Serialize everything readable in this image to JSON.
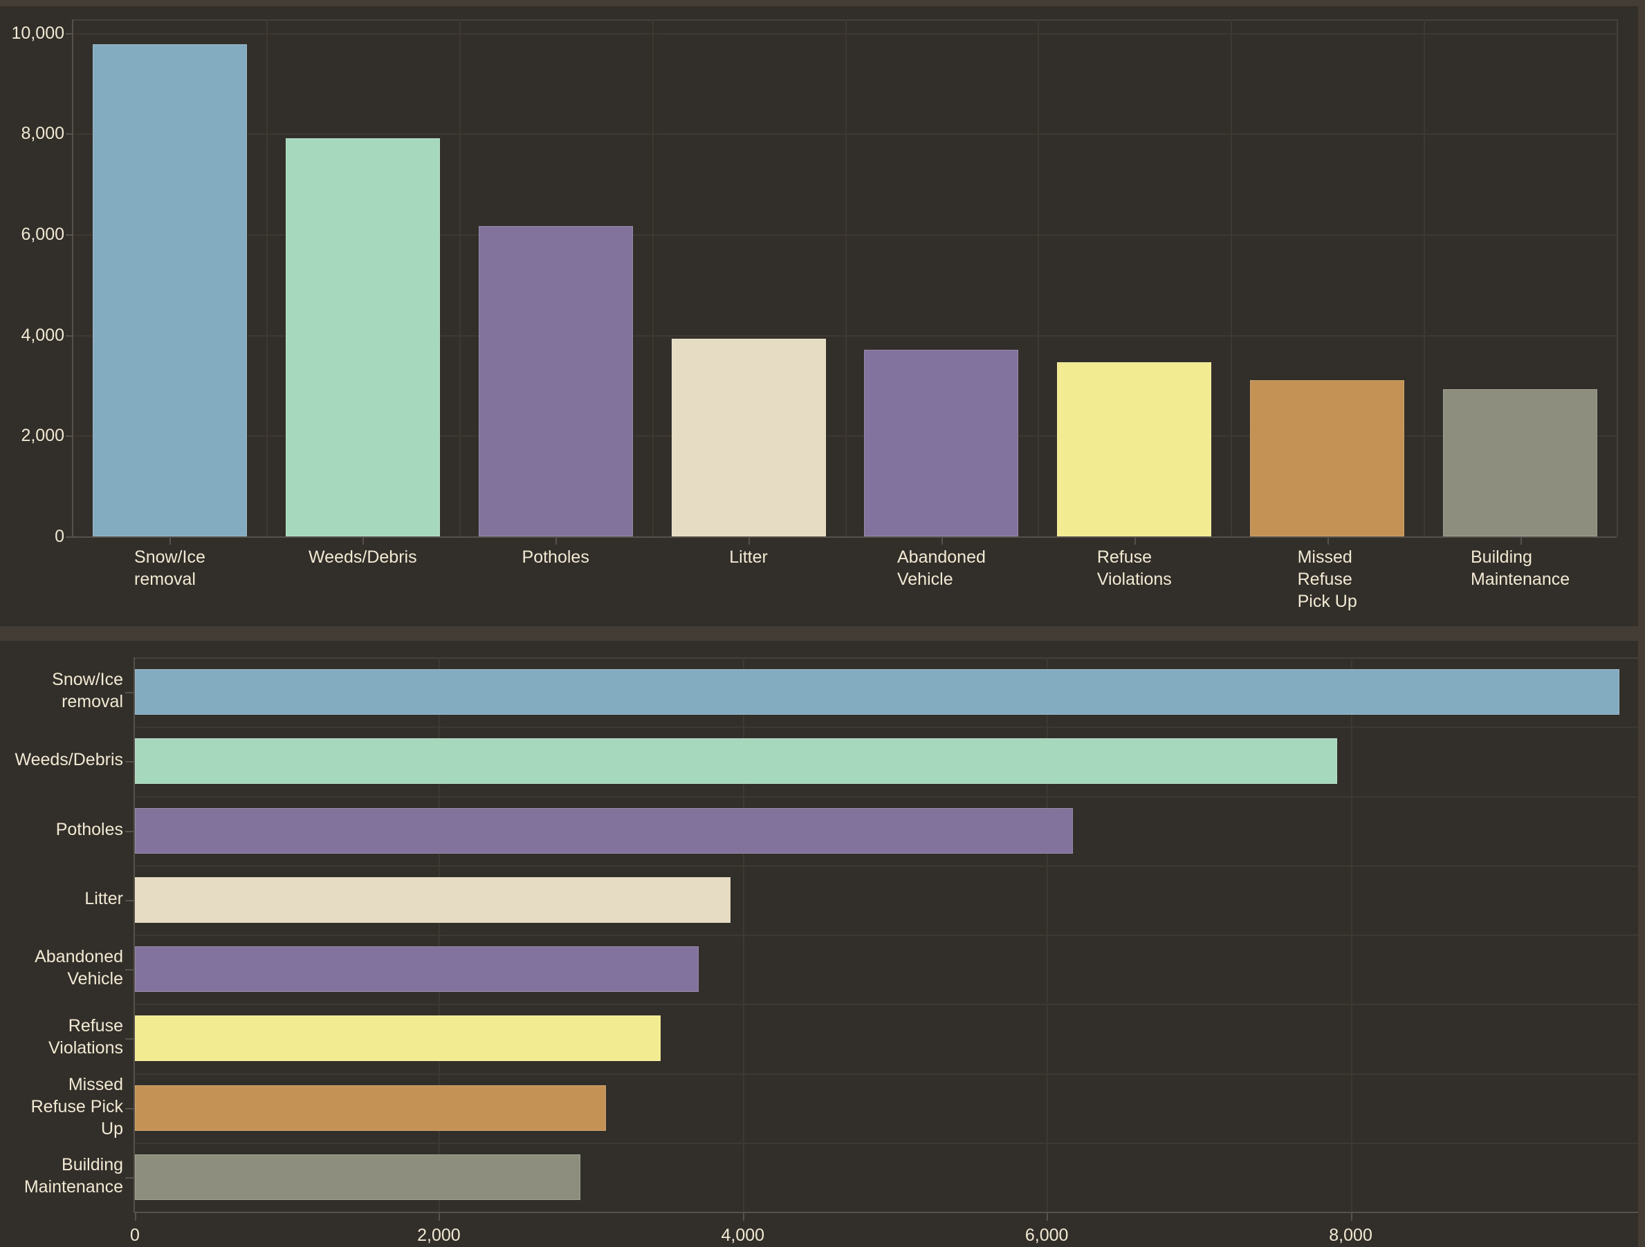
{
  "page": {
    "background": "#322F2A",
    "frame_color": "#433D35",
    "text_color": "#F2E9D4",
    "gridline_color": "#3D3931",
    "plot_border_color": "#454039",
    "axis_line_color": "#56514A",
    "tick_color": "#56514A"
  },
  "chart_data": [
    {
      "type": "bar",
      "orientation": "vertical",
      "grid": true,
      "legend": false,
      "categories": [
        "Snow/Ice removal",
        "Weeds/Debris",
        "Potholes",
        "Litter",
        "Abandoned Vehicle",
        "Refuse Violations",
        "Missed Refuse Pick Up",
        "Building Maintenance"
      ],
      "category_label_lines": [
        [
          "Snow/Ice",
          "removal"
        ],
        [
          "Weeds/Debris"
        ],
        [
          "Potholes"
        ],
        [
          "Litter"
        ],
        [
          "Abandoned",
          "Vehicle"
        ],
        [
          "Refuse",
          "Violations"
        ],
        [
          "Missed",
          "Refuse",
          "Pick Up"
        ],
        [
          "Building",
          "Maintenance"
        ]
      ],
      "values": [
        9770,
        7910,
        6170,
        3920,
        3710,
        3460,
        3100,
        2930
      ],
      "colors": [
        "#83ACC0",
        "#A5D8BD",
        "#82739D",
        "#E5DCC3",
        "#81729E",
        "#F2EB92",
        "#C49255",
        "#8D8E7E"
      ],
      "value_axis": {
        "tick_labels": [
          "0",
          "2,000",
          "4,000",
          "6,000",
          "8,000",
          "10,000"
        ],
        "tick_values": [
          0,
          2000,
          4000,
          6000,
          8000,
          10000
        ],
        "range": [
          0,
          10270
        ]
      }
    },
    {
      "type": "bar",
      "orientation": "horizontal",
      "grid": true,
      "legend": false,
      "categories": [
        "Snow/Ice removal",
        "Weeds/Debris",
        "Potholes",
        "Litter",
        "Abandoned Vehicle",
        "Refuse Violations",
        "Missed Refuse Pick Up",
        "Building Maintenance"
      ],
      "category_label_lines": [
        [
          "Snow/Ice",
          "removal"
        ],
        [
          "Weeds/Debris"
        ],
        [
          "Potholes"
        ],
        [
          "Litter"
        ],
        [
          "Abandoned",
          "Vehicle"
        ],
        [
          "Refuse",
          "Violations"
        ],
        [
          "Missed",
          "Refuse Pick",
          "Up"
        ],
        [
          "Building",
          "Maintenance"
        ]
      ],
      "values": [
        9770,
        7910,
        6170,
        3920,
        3710,
        3460,
        3100,
        2930
      ],
      "colors": [
        "#83ACC0",
        "#A5D8BD",
        "#82739D",
        "#E5DCC3",
        "#81729E",
        "#F2EB92",
        "#C49255",
        "#8D8E7E"
      ],
      "value_axis": {
        "tick_labels": [
          "0",
          "2,000",
          "4,000",
          "6,000",
          "8,000"
        ],
        "tick_values": [
          0,
          2000,
          4000,
          6000,
          8000
        ],
        "range": [
          0,
          9900
        ]
      }
    }
  ]
}
